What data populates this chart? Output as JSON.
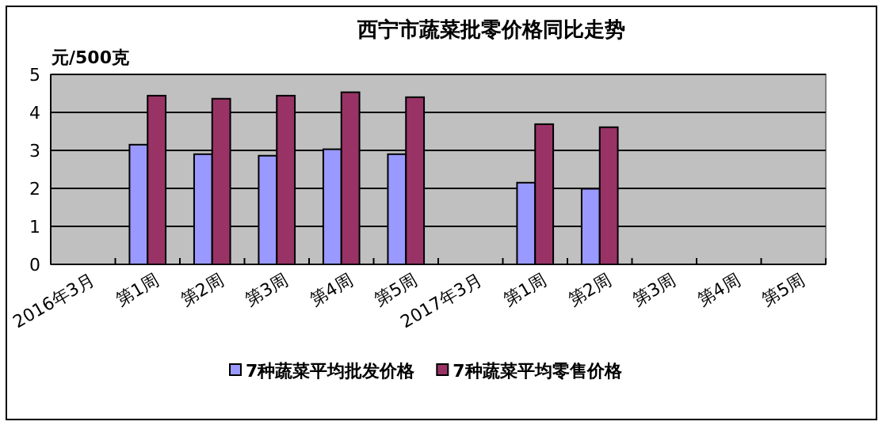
{
  "chart_data": {
    "type": "bar",
    "title": "西宁市蔬菜批零价格同比走势",
    "ylabel": "元/500克",
    "categories": [
      "2016年3月",
      "第1周",
      "第2周",
      "第3周",
      "第4周",
      "第5周",
      "2017年3月",
      "第1周",
      "第2周",
      "第3周",
      "第4周",
      "第5周"
    ],
    "series": [
      {
        "name": "7种蔬菜平均批发价格",
        "color": "#9999ff",
        "values": [
          null,
          3.15,
          2.9,
          2.86,
          3.03,
          2.9,
          null,
          2.15,
          1.99,
          null,
          null,
          null
        ]
      },
      {
        "name": "7种蔬菜平均零售价格",
        "color": "#993366",
        "values": [
          null,
          4.44,
          4.36,
          4.44,
          4.53,
          4.4,
          null,
          3.69,
          3.61,
          null,
          null,
          null
        ]
      }
    ],
    "ylim": [
      0,
      5
    ],
    "yticks": [
      0,
      1,
      2,
      3,
      4,
      5
    ],
    "grid": "y",
    "legend": "bottom"
  }
}
